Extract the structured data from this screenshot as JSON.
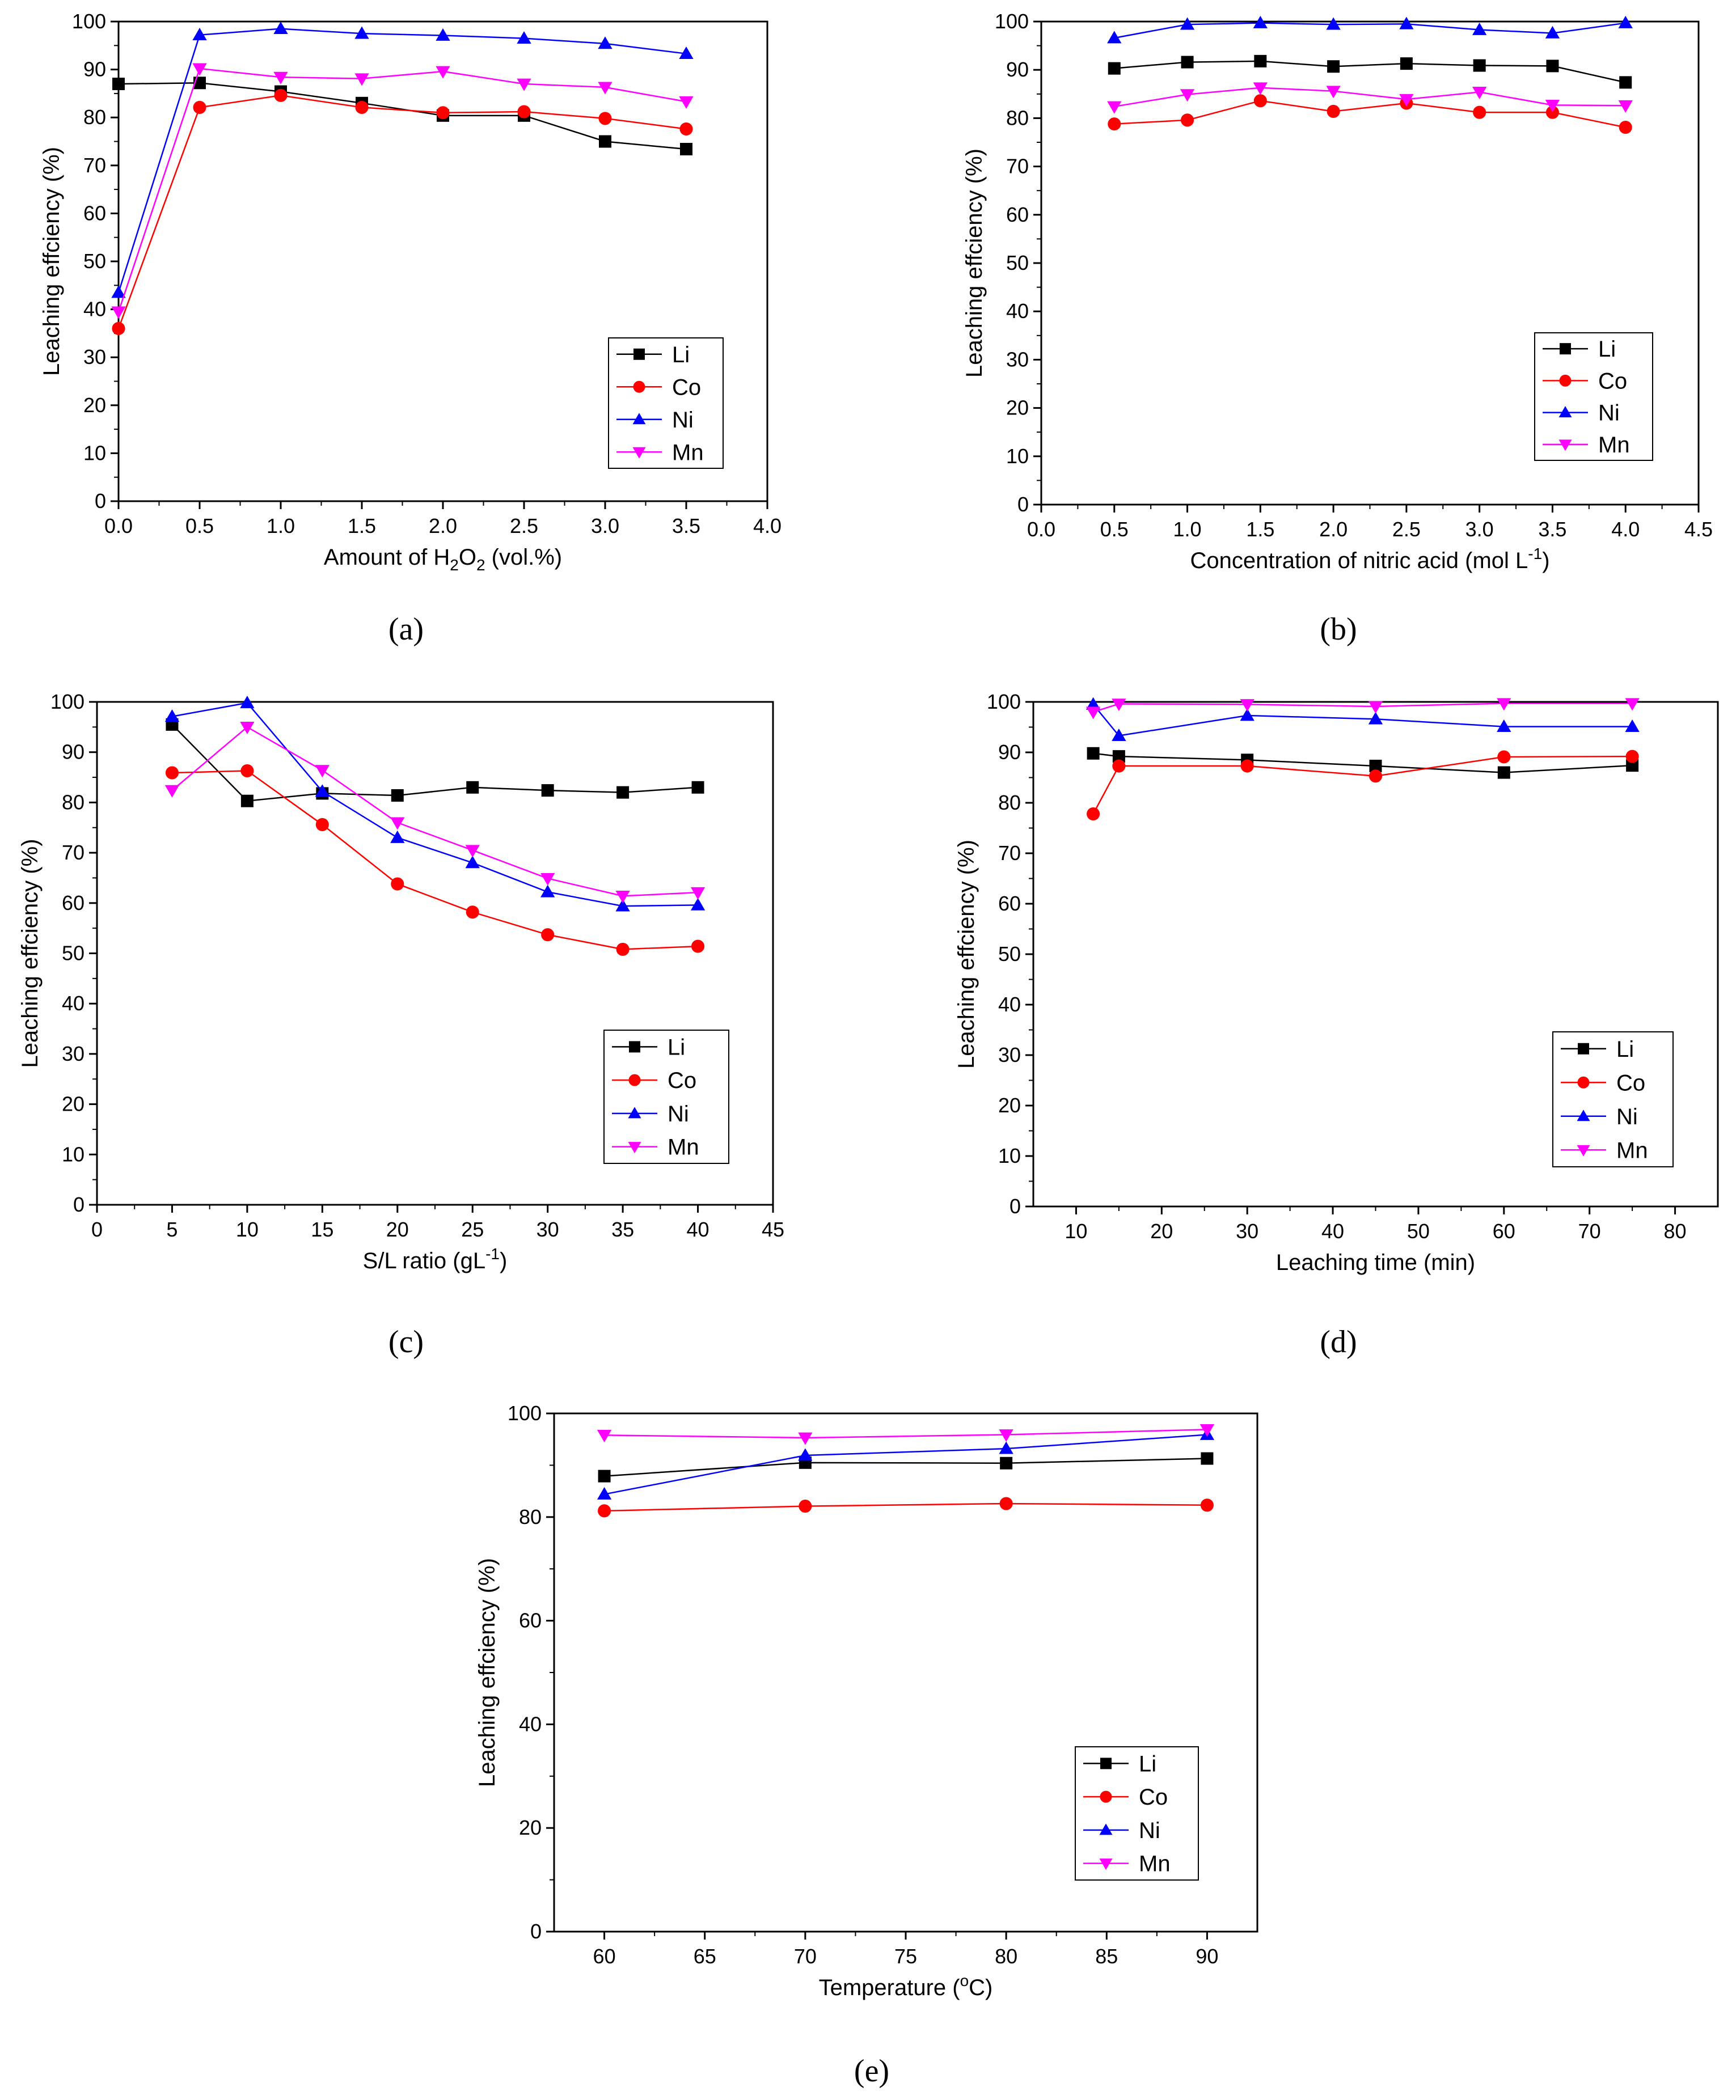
{
  "colors": {
    "Li": "#000000",
    "Co": "#ff0000",
    "Ni": "#0000ff",
    "Mn": "#ff00ff"
  },
  "chart_data": [
    {
      "type": "line",
      "caption": "(a)",
      "xlabel": {
        "pre": "Amount of H",
        "sub1": "2",
        "mid": "O",
        "sub2": "2",
        "post": " (vol.%)"
      },
      "ylabel": "Leaching effciency (%)",
      "xlim": [
        0,
        4
      ],
      "ylim": [
        0,
        100
      ],
      "xticks": [
        "0.0",
        "0.5",
        "1.0",
        "1.5",
        "2.0",
        "2.5",
        "3.0",
        "3.5",
        "4.0"
      ],
      "yticks": [
        "0",
        "10",
        "20",
        "30",
        "40",
        "50",
        "60",
        "70",
        "80",
        "90",
        "100"
      ],
      "legend_position": "bottom-right",
      "x": [
        0,
        0.5,
        1.0,
        1.5,
        2.0,
        2.5,
        3.0,
        3.5
      ],
      "series": [
        {
          "name": "Li",
          "values": [
            87.0,
            87.2,
            85.4,
            83.0,
            80.4,
            80.4,
            75.0,
            73.4
          ]
        },
        {
          "name": "Co",
          "values": [
            36.0,
            82.1,
            84.6,
            82.1,
            81.0,
            81.2,
            79.8,
            77.6
          ]
        },
        {
          "name": "Ni",
          "values": [
            43.5,
            97.2,
            98.5,
            97.5,
            97.1,
            96.5,
            95.4,
            93.3
          ]
        },
        {
          "name": "Mn",
          "values": [
            39.5,
            90.2,
            88.4,
            88.1,
            89.6,
            87.0,
            86.3,
            83.3
          ]
        }
      ]
    },
    {
      "type": "line",
      "caption": "(b)",
      "xlabel": {
        "pre": "Concentration of nitric acid (mol L",
        "sup": "-1",
        "post": ")"
      },
      "ylabel": "Leaching effciency (%)",
      "xlim": [
        0,
        4.5
      ],
      "ylim": [
        0,
        100
      ],
      "xticks": [
        "0.0",
        "0.5",
        "1.0",
        "1.5",
        "2.0",
        "2.5",
        "3.0",
        "3.5",
        "4.0",
        "4.5"
      ],
      "yticks": [
        "0",
        "10",
        "20",
        "30",
        "40",
        "50",
        "60",
        "70",
        "80",
        "90",
        "100"
      ],
      "legend_position": "bottom-right",
      "x": [
        0.5,
        1.0,
        1.5,
        2.0,
        2.5,
        3.0,
        3.5,
        4.0
      ],
      "series": [
        {
          "name": "Li",
          "values": [
            90.3,
            91.6,
            91.8,
            90.7,
            91.3,
            90.9,
            90.8,
            87.4
          ]
        },
        {
          "name": "Co",
          "values": [
            78.8,
            79.6,
            83.6,
            81.4,
            83.1,
            81.2,
            81.2,
            78.1
          ]
        },
        {
          "name": "Ni",
          "values": [
            96.6,
            99.4,
            99.7,
            99.4,
            99.5,
            98.3,
            97.6,
            99.7
          ]
        },
        {
          "name": "Mn",
          "values": [
            82.4,
            84.9,
            86.3,
            85.6,
            83.9,
            85.4,
            82.7,
            82.6
          ]
        }
      ]
    },
    {
      "type": "line",
      "caption": "(c)",
      "xlabel": {
        "pre": "S/L ratio (gL",
        "sup": "-1",
        "post": ")"
      },
      "ylabel": "Leaching effciency (%)",
      "xlim": [
        0,
        45
      ],
      "ylim": [
        0,
        100
      ],
      "xticks": [
        "0",
        "5",
        "10",
        "15",
        "20",
        "25",
        "30",
        "35",
        "40",
        "45"
      ],
      "yticks": [
        "0",
        "10",
        "20",
        "30",
        "40",
        "50",
        "60",
        "70",
        "80",
        "90",
        "100"
      ],
      "legend_position": "bottom-right",
      "x": [
        5,
        10,
        15,
        20,
        25,
        30,
        35,
        40
      ],
      "series": [
        {
          "name": "Li",
          "values": [
            95.5,
            80.3,
            81.8,
            81.4,
            83.0,
            82.4,
            82.0,
            83.0
          ]
        },
        {
          "name": "Co",
          "values": [
            85.9,
            86.3,
            75.6,
            63.8,
            58.2,
            53.7,
            50.8,
            51.4
          ]
        },
        {
          "name": "Ni",
          "values": [
            97.1,
            99.8,
            82.2,
            73.0,
            68.0,
            62.2,
            59.4,
            59.6
          ]
        },
        {
          "name": "Mn",
          "values": [
            82.4,
            95.0,
            86.4,
            76.0,
            70.5,
            64.9,
            61.4,
            62.1
          ]
        }
      ]
    },
    {
      "type": "line",
      "caption": "(d)",
      "xlabel": {
        "pre": "Leaching time (min)"
      },
      "ylabel": "Leaching effciency (%)",
      "xlim": [
        5,
        85
      ],
      "ylim": [
        0,
        100
      ],
      "xticks": [
        "10",
        "20",
        "30",
        "40",
        "50",
        "60",
        "70",
        "80"
      ],
      "yticks": [
        "0",
        "10",
        "20",
        "30",
        "40",
        "50",
        "60",
        "70",
        "80",
        "90",
        "100"
      ],
      "legend_position": "bottom-right",
      "x": [
        12,
        15,
        30,
        45,
        60,
        75
      ],
      "series": [
        {
          "name": "Li",
          "values": [
            89.8,
            89.2,
            88.5,
            87.3,
            86.0,
            87.4
          ]
        },
        {
          "name": "Co",
          "values": [
            77.8,
            87.3,
            87.3,
            85.3,
            89.1,
            89.2
          ]
        },
        {
          "name": "Ni",
          "values": [
            99.5,
            93.3,
            97.3,
            96.6,
            95.1,
            95.1
          ]
        },
        {
          "name": "Mn",
          "values": [
            98.0,
            99.6,
            99.5,
            99.1,
            99.7,
            99.7
          ]
        }
      ]
    },
    {
      "type": "line",
      "caption": "(e)",
      "xlabel": {
        "pre": "Temperature (",
        "sup": "o",
        "post": "C)"
      },
      "ylabel": "Leaching effciency (%)",
      "xlim": [
        57.5,
        92.5
      ],
      "ylim": [
        0,
        100
      ],
      "xticks": [
        "60",
        "65",
        "70",
        "75",
        "80",
        "85",
        "90"
      ],
      "yticks": [
        "0",
        "20",
        "40",
        "60",
        "80",
        "100"
      ],
      "legend_position": "bottom-right",
      "x": [
        60,
        70,
        80,
        90
      ],
      "series": [
        {
          "name": "Li",
          "values": [
            87.9,
            90.5,
            90.4,
            91.3
          ]
        },
        {
          "name": "Co",
          "values": [
            81.2,
            82.1,
            82.6,
            82.3
          ]
        },
        {
          "name": "Ni",
          "values": [
            84.4,
            91.9,
            93.2,
            95.9
          ]
        },
        {
          "name": "Mn",
          "values": [
            95.8,
            95.3,
            95.9,
            96.9
          ]
        }
      ]
    }
  ]
}
